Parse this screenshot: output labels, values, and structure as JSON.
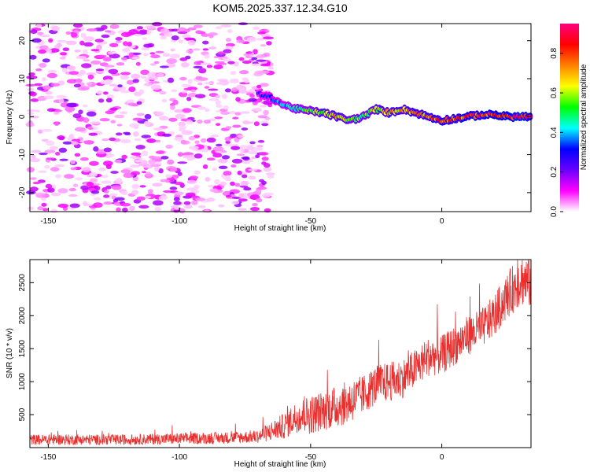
{
  "title": "KOM5.2025.337.12.34.G10",
  "chart_data": [
    {
      "type": "heatmap",
      "xlabel": "Height of straight line (km)",
      "ylabel": "Frequency (Hz)",
      "xlim": [
        -157,
        34
      ],
      "ylim": [
        -25,
        24.5
      ],
      "xticks": [
        -150,
        -100,
        -50,
        0
      ],
      "yticks": [
        -20,
        -10,
        0,
        10,
        20
      ],
      "colorbar": {
        "label": "Normalized spectral amplitude",
        "range": [
          0,
          0.95
        ],
        "ticks": [
          "0.0",
          "0.2",
          "0.4",
          "0.6",
          "0.8"
        ],
        "tick_values": [
          0,
          0.2,
          0.4,
          0.6,
          0.8
        ],
        "colormap": [
          "#ffffff",
          "#ff00ff",
          "#6a00ff",
          "#0000ff",
          "#00ffff",
          "#00ff00",
          "#ffff00",
          "#ff8000",
          "#ff0000",
          "#ff0080"
        ]
      },
      "noise_region": {
        "x_range": [
          -157,
          -65
        ],
        "level_range": [
          0.02,
          0.2
        ]
      },
      "signal_ridge": {
        "x": [
          -70,
          -65,
          -60,
          -55,
          -50,
          -45,
          -40,
          -35,
          -30,
          -25,
          -20,
          -15,
          -10,
          -5,
          0,
          5,
          10,
          15,
          20,
          25,
          30,
          34
        ],
        "frequency": [
          6,
          5,
          3,
          2,
          1.5,
          1,
          0,
          -1,
          0,
          2,
          1,
          2,
          1,
          0,
          -1,
          -0.5,
          0,
          0.5,
          0.5,
          0,
          0,
          0
        ],
        "amplitude": [
          0.25,
          0.35,
          0.4,
          0.5,
          0.55,
          0.65,
          0.7,
          0.6,
          0.55,
          0.65,
          0.7,
          0.7,
          0.75,
          0.75,
          0.8,
          0.8,
          0.85,
          0.85,
          0.9,
          0.9,
          0.95,
          0.9
        ]
      }
    },
    {
      "type": "line",
      "xlabel": "Height of straight line (km)",
      "ylabel": "SNR (10 * v/v)",
      "xlim": [
        -157,
        34
      ],
      "ylim": [
        0,
        2850
      ],
      "xticks": [
        -150,
        -100,
        -50,
        0
      ],
      "yticks": [
        500,
        1000,
        1500,
        2000,
        2500
      ],
      "series": [
        {
          "name": "SNR",
          "color": "#e8302f",
          "trend_x": [
            -157,
            -120,
            -80,
            -70,
            -65,
            -60,
            -55,
            -50,
            -45,
            -40,
            -35,
            -30,
            -25,
            -20,
            -15,
            -10,
            -5,
            0,
            5,
            10,
            15,
            20,
            25,
            30,
            34
          ],
          "trend_y": [
            120,
            120,
            150,
            170,
            250,
            330,
            480,
            500,
            560,
            620,
            700,
            800,
            950,
            1000,
            1050,
            1200,
            1380,
            1400,
            1550,
            1700,
            1800,
            2000,
            2300,
            2550,
            2500
          ],
          "spread": [
            80,
            80,
            90,
            100,
            150,
            200,
            250,
            300,
            300,
            320,
            330,
            300,
            300,
            300,
            300,
            300,
            300,
            300,
            300,
            300,
            300,
            320,
            350,
            400,
            400
          ]
        }
      ]
    }
  ]
}
